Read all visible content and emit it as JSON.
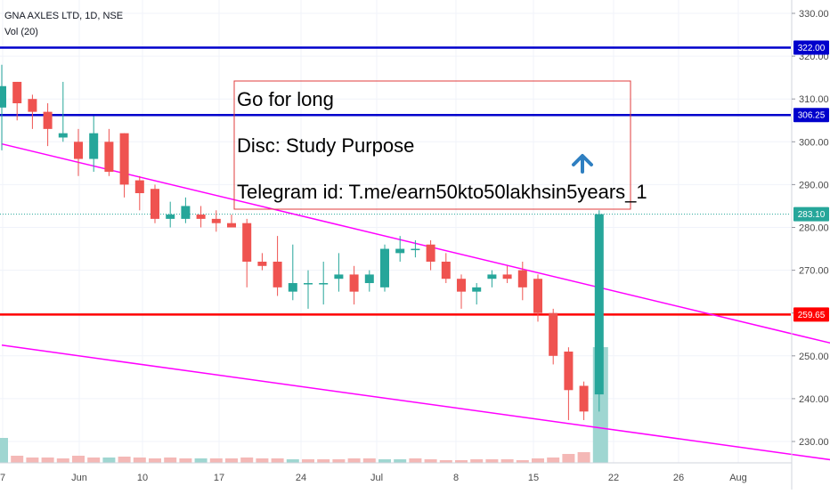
{
  "header": {
    "symbol_line": "GNA AXLES LTD, 1D, NSE",
    "indicator_line": "Vol (20)"
  },
  "annotation": {
    "lines": [
      "Go for long",
      "Disc: Study Purpose",
      "Telegram id: T.me/earn50kto50lakhsin5years_1"
    ],
    "border_color": "#e03c3c",
    "arrow_color": "#2f7fc1"
  },
  "colors": {
    "up": "#26a69a",
    "down": "#ef5350",
    "up_volume": "#9fd6d1",
    "down_volume": "#f4b8b6",
    "trendline": "#ff00ff",
    "resistance": "#0000cc",
    "support": "#ff0000",
    "last_price": "#26a69a"
  },
  "chart_data": {
    "type": "candlestick",
    "title": "GNA AXLES LTD, 1D, NSE",
    "ylim": [
      225,
      333
    ],
    "y_ticks": [
      "230.00",
      "240.00",
      "250.00",
      "260.00",
      "270.00",
      "280.00",
      "290.00",
      "300.00",
      "310.00",
      "320.00",
      "330.00"
    ],
    "x_ticks": [
      "7",
      "Jun",
      "10",
      "17",
      "24",
      "Jul",
      "8",
      "15",
      "22",
      "26",
      "Aug"
    ],
    "candles": [
      {
        "o": 308,
        "h": 318,
        "l": 298,
        "c": 313
      },
      {
        "o": 314,
        "h": 314,
        "l": 305,
        "c": 309
      },
      {
        "o": 310,
        "h": 311,
        "l": 303,
        "c": 307
      },
      {
        "o": 307,
        "h": 309,
        "l": 299,
        "c": 303
      },
      {
        "o": 301,
        "h": 314,
        "l": 300,
        "c": 302
      },
      {
        "o": 300,
        "h": 303,
        "l": 292,
        "c": 296
      },
      {
        "o": 296,
        "h": 306,
        "l": 293,
        "c": 302
      },
      {
        "o": 300,
        "h": 303,
        "l": 292,
        "c": 293
      },
      {
        "o": 302,
        "h": 302,
        "l": 287,
        "c": 290
      },
      {
        "o": 291,
        "h": 292,
        "l": 284,
        "c": 288
      },
      {
        "o": 289,
        "h": 290,
        "l": 281,
        "c": 282
      },
      {
        "o": 282,
        "h": 286,
        "l": 280,
        "c": 283
      },
      {
        "o": 282,
        "h": 287,
        "l": 281,
        "c": 285
      },
      {
        "o": 283,
        "h": 285,
        "l": 280,
        "c": 282
      },
      {
        "o": 282,
        "h": 284,
        "l": 279,
        "c": 281
      },
      {
        "o": 281,
        "h": 283,
        "l": 280,
        "c": 280
      },
      {
        "o": 281,
        "h": 282,
        "l": 266,
        "c": 272
      },
      {
        "o": 272,
        "h": 274,
        "l": 270,
        "c": 271
      },
      {
        "o": 272,
        "h": 278,
        "l": 264,
        "c": 266
      },
      {
        "o": 265,
        "h": 276,
        "l": 263,
        "c": 267
      },
      {
        "o": 267,
        "h": 270,
        "l": 261,
        "c": 267
      },
      {
        "o": 267,
        "h": 272,
        "l": 262,
        "c": 267
      },
      {
        "o": 268,
        "h": 274,
        "l": 265,
        "c": 269
      },
      {
        "o": 269,
        "h": 271,
        "l": 262,
        "c": 265
      },
      {
        "o": 267,
        "h": 270,
        "l": 265,
        "c": 269
      },
      {
        "o": 266,
        "h": 276,
        "l": 265,
        "c": 275
      },
      {
        "o": 274,
        "h": 278,
        "l": 272,
        "c": 275
      },
      {
        "o": 275,
        "h": 277,
        "l": 273,
        "c": 275
      },
      {
        "o": 276,
        "h": 277,
        "l": 270,
        "c": 272
      },
      {
        "o": 272,
        "h": 274,
        "l": 267,
        "c": 268
      },
      {
        "o": 268,
        "h": 269,
        "l": 261,
        "c": 265
      },
      {
        "o": 265,
        "h": 267,
        "l": 262,
        "c": 266
      },
      {
        "o": 268,
        "h": 270,
        "l": 266,
        "c": 269
      },
      {
        "o": 269,
        "h": 271,
        "l": 267,
        "c": 268
      },
      {
        "o": 270,
        "h": 272,
        "l": 263,
        "c": 266
      },
      {
        "o": 268,
        "h": 269,
        "l": 258,
        "c": 260
      },
      {
        "o": 260,
        "h": 261,
        "l": 248,
        "c": 250
      },
      {
        "o": 251,
        "h": 252,
        "l": 235,
        "c": 242
      },
      {
        "o": 243,
        "h": 244,
        "l": 235,
        "c": 237
      },
      {
        "o": 241,
        "h": 284,
        "l": 237,
        "c": 283.1
      }
    ],
    "volume": [
      {
        "v": 28,
        "up": true
      },
      {
        "v": 8,
        "up": false
      },
      {
        "v": 6,
        "up": false
      },
      {
        "v": 6,
        "up": false
      },
      {
        "v": 5,
        "up": false
      },
      {
        "v": 8,
        "up": false
      },
      {
        "v": 6,
        "up": false
      },
      {
        "v": 6,
        "up": true
      },
      {
        "v": 7,
        "up": false
      },
      {
        "v": 6,
        "up": false
      },
      {
        "v": 5,
        "up": false
      },
      {
        "v": 6,
        "up": false
      },
      {
        "v": 5,
        "up": false
      },
      {
        "v": 5,
        "up": true
      },
      {
        "v": 5,
        "up": false
      },
      {
        "v": 5,
        "up": false
      },
      {
        "v": 6,
        "up": false
      },
      {
        "v": 5,
        "up": false
      },
      {
        "v": 5,
        "up": false
      },
      {
        "v": 4,
        "up": true
      },
      {
        "v": 4,
        "up": false
      },
      {
        "v": 4,
        "up": false
      },
      {
        "v": 4,
        "up": false
      },
      {
        "v": 5,
        "up": false
      },
      {
        "v": 5,
        "up": false
      },
      {
        "v": 4,
        "up": true
      },
      {
        "v": 4,
        "up": true
      },
      {
        "v": 5,
        "up": false
      },
      {
        "v": 4,
        "up": false
      },
      {
        "v": 3,
        "up": false
      },
      {
        "v": 3,
        "up": false
      },
      {
        "v": 4,
        "up": false
      },
      {
        "v": 4,
        "up": false
      },
      {
        "v": 4,
        "up": false
      },
      {
        "v": 3,
        "up": false
      },
      {
        "v": 5,
        "up": false
      },
      {
        "v": 6,
        "up": false
      },
      {
        "v": 10,
        "up": false
      },
      {
        "v": 12,
        "up": false
      },
      {
        "v": 130,
        "up": true
      }
    ],
    "horizontal_lines": [
      {
        "price": 322.0,
        "label": "322.00",
        "color": "#0000cc"
      },
      {
        "price": 306.25,
        "label": "306.25",
        "color": "#0000cc"
      },
      {
        "price": 259.65,
        "label": "259.65",
        "color": "#ff0000"
      }
    ],
    "last_price": {
      "price": 283.1,
      "label": "283.10"
    },
    "trendlines": [
      {
        "from_candle": 0,
        "from_price": 299.5,
        "to_candle": 57,
        "to_price": 250.5
      },
      {
        "from_candle": 0,
        "from_price": 252.5,
        "to_candle": 57,
        "to_price": 224.3
      }
    ]
  }
}
